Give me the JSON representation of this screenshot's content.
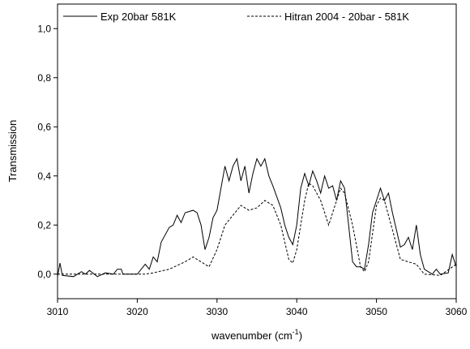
{
  "chart_data": {
    "type": "line",
    "ylabel": "Transmission",
    "xlabel": {
      "text": "wavenumber (cm",
      "sup": "-1",
      "close": ")"
    },
    "xlim": [
      3010,
      3060
    ],
    "xticks": [
      3010,
      3020,
      3030,
      3040,
      3050,
      3060
    ],
    "ylim": [
      -0.1,
      1.1
    ],
    "yticks": [
      {
        "value": 0,
        "label": "0,0"
      },
      {
        "value": 0.2,
        "label": "0,2"
      },
      {
        "value": 0.4,
        "label": "0,4"
      },
      {
        "value": 0.6,
        "label": "0,6"
      },
      {
        "value": 0.8,
        "label": "0,8"
      },
      {
        "value": 1.0,
        "label": "1,0"
      }
    ],
    "grid": false,
    "legend": "top",
    "series": [
      {
        "name": "Exp 20bar 581K",
        "color": "#000000",
        "dash": "solid",
        "x": [
          3010,
          3010.3,
          3010.6,
          3012,
          3013,
          3013.5,
          3014,
          3015,
          3016,
          3017,
          3017.5,
          3018,
          3018.2,
          3020,
          3021,
          3021.5,
          3022,
          3022.5,
          3023,
          3024,
          3024.5,
          3025,
          3025.5,
          3026,
          3027,
          3027.5,
          3028,
          3028.5,
          3029,
          3029.5,
          3030,
          3030.5,
          3031,
          3031.5,
          3032,
          3032.5,
          3033,
          3033.5,
          3034,
          3034.5,
          3035,
          3035.5,
          3036,
          3036.5,
          3037,
          3038,
          3038.5,
          3039,
          3039.5,
          3040,
          3040.5,
          3041,
          3041.5,
          3042,
          3042.5,
          3043,
          3043.5,
          3044,
          3044.5,
          3045,
          3045.5,
          3046,
          3046.5,
          3047,
          3047.5,
          3048,
          3048.5,
          3049,
          3049.5,
          3050,
          3050.5,
          3051,
          3051.5,
          3052,
          3052.5,
          3053,
          3053.5,
          3054,
          3054.5,
          3055,
          3055.5,
          3056,
          3057,
          3057.5,
          3058,
          3059,
          3059.5,
          3060
        ],
        "values": [
          -0.01,
          0.045,
          -0.005,
          -0.01,
          0.01,
          0.0,
          0.015,
          -0.01,
          0.005,
          0.0,
          0.02,
          0.02,
          0.0,
          0.0,
          0.04,
          0.02,
          0.07,
          0.05,
          0.13,
          0.19,
          0.2,
          0.24,
          0.21,
          0.25,
          0.26,
          0.25,
          0.2,
          0.1,
          0.15,
          0.23,
          0.26,
          0.35,
          0.44,
          0.38,
          0.44,
          0.47,
          0.38,
          0.44,
          0.33,
          0.41,
          0.47,
          0.44,
          0.47,
          0.4,
          0.36,
          0.27,
          0.2,
          0.15,
          0.12,
          0.2,
          0.35,
          0.41,
          0.36,
          0.42,
          0.38,
          0.33,
          0.4,
          0.35,
          0.36,
          0.3,
          0.38,
          0.35,
          0.2,
          0.05,
          0.03,
          0.03,
          0.02,
          0.12,
          0.25,
          0.3,
          0.35,
          0.3,
          0.33,
          0.25,
          0.18,
          0.11,
          0.12,
          0.15,
          0.1,
          0.2,
          0.08,
          0.02,
          0.0,
          0.02,
          0.0,
          0.005,
          0.08,
          0.03
        ]
      },
      {
        "name": "Hitran 2004 - 20bar - 581K",
        "color": "#000000",
        "dash": "dashed",
        "x": [
          3010,
          3021,
          3022,
          3024,
          3026,
          3027,
          3028,
          3029,
          3030,
          3031,
          3032,
          3033,
          3034,
          3035,
          3036,
          3037,
          3038,
          3039,
          3039.5,
          3040,
          3041,
          3041.5,
          3042,
          3043,
          3044,
          3045,
          3045.5,
          3046,
          3047,
          3048,
          3048.5,
          3049,
          3050,
          3050.5,
          3051,
          3052,
          3053,
          3054,
          3055,
          3056,
          3058,
          3060
        ],
        "values": [
          0,
          0,
          0.005,
          0.02,
          0.05,
          0.07,
          0.05,
          0.03,
          0.1,
          0.2,
          0.24,
          0.28,
          0.26,
          0.27,
          0.3,
          0.28,
          0.2,
          0.06,
          0.045,
          0.1,
          0.3,
          0.37,
          0.36,
          0.3,
          0.2,
          0.3,
          0.35,
          0.33,
          0.2,
          0.03,
          0.01,
          0.05,
          0.28,
          0.31,
          0.3,
          0.18,
          0.06,
          0.05,
          0.04,
          0.0,
          -0.005,
          0.04
        ]
      }
    ]
  }
}
